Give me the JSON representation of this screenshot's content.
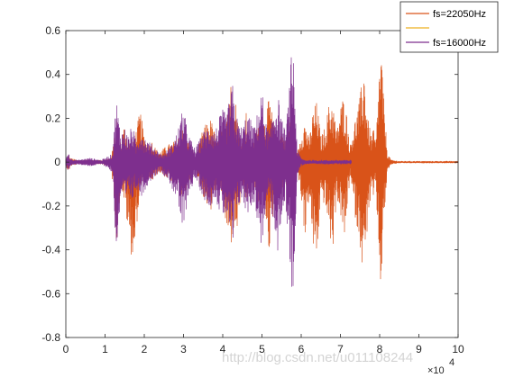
{
  "chart_data": {
    "type": "line",
    "title": "",
    "xlabel": "",
    "ylabel": "",
    "xlim": [
      0,
      100000
    ],
    "ylim": [
      -0.8,
      0.6
    ],
    "x_ticks": [
      0,
      10000,
      20000,
      30000,
      40000,
      50000,
      60000,
      70000,
      80000,
      90000,
      100000
    ],
    "x_tick_labels": [
      "0",
      "1",
      "2",
      "3",
      "4",
      "5",
      "6",
      "7",
      "8",
      "9",
      "10"
    ],
    "x_exponent_label": "×10",
    "x_exponent_power": "4",
    "y_ticks": [
      -0.8,
      -0.6,
      -0.4,
      -0.2,
      0,
      0.2,
      0.4,
      0.6
    ],
    "y_tick_labels": [
      "-0.8",
      "-0.6",
      "-0.4",
      "-0.2",
      "0",
      "0.2",
      "0.4",
      "0.6"
    ],
    "grid": false,
    "legend_position": "top-right",
    "legend": [
      "fs=22050Hz",
      "",
      "fs=16000Hz"
    ],
    "series": [
      {
        "name": "fs=22050Hz",
        "color": "#D95319",
        "x": [
          0,
          800,
          1000,
          3000,
          6000,
          9000,
          11500,
          12500,
          13000,
          13300,
          14000,
          15000,
          16500,
          17500,
          18000,
          19000,
          20000,
          21000,
          22000,
          23000,
          24000,
          26000,
          28000,
          30000,
          31000,
          32000,
          33000,
          34000,
          35000,
          37000,
          38500,
          40000,
          41000,
          42000,
          43000,
          43500,
          44000,
          45000,
          46000,
          47000,
          48000,
          49000,
          50000,
          51000,
          52000,
          53000,
          54000,
          55000,
          56000,
          57000,
          58000,
          58500,
          59000,
          60000,
          61000,
          62000,
          63000,
          64000,
          65000,
          66000,
          67000,
          68000,
          69000,
          70000,
          71000,
          72000,
          72500,
          73000,
          74000,
          75000,
          76000,
          77000,
          78000,
          78500,
          79000,
          80000,
          80500,
          81000,
          82000,
          83000,
          85000,
          90000,
          95000,
          100000
        ],
        "upper": [
          0.01,
          0.04,
          0.02,
          0.01,
          0.01,
          0.01,
          0.02,
          0.12,
          0.22,
          0.16,
          0.1,
          0.18,
          0.08,
          0.1,
          0.16,
          0.24,
          0.12,
          0.08,
          0.1,
          0.06,
          0.05,
          0.08,
          0.1,
          0.16,
          0.1,
          0.08,
          0.02,
          0.08,
          0.16,
          0.2,
          0.1,
          0.16,
          0.3,
          0.38,
          0.24,
          0.3,
          0.16,
          0.1,
          0.24,
          0.06,
          0.1,
          0.2,
          0.14,
          0.24,
          0.3,
          0.18,
          0.1,
          0.16,
          0.1,
          0.2,
          0.12,
          0.1,
          0.04,
          0.14,
          0.2,
          0.1,
          0.24,
          0.28,
          0.12,
          0.16,
          0.26,
          0.3,
          0.14,
          0.26,
          0.32,
          0.16,
          0.08,
          0.14,
          0.22,
          0.3,
          0.46,
          0.2,
          0.12,
          0.16,
          0.08,
          0.48,
          0.52,
          0.3,
          0.04,
          0.01,
          0.005,
          0.005,
          0.005,
          0.005
        ],
        "lower": [
          -0.01,
          -0.06,
          -0.02,
          -0.01,
          -0.01,
          -0.01,
          -0.02,
          -0.2,
          -0.4,
          -0.3,
          -0.1,
          -0.2,
          -0.42,
          -0.44,
          -0.3,
          -0.14,
          -0.08,
          -0.06,
          -0.1,
          -0.06,
          -0.05,
          -0.08,
          -0.1,
          -0.2,
          -0.1,
          -0.08,
          -0.02,
          -0.1,
          -0.16,
          -0.24,
          -0.1,
          -0.16,
          -0.34,
          -0.4,
          -0.3,
          -0.36,
          -0.26,
          -0.1,
          -0.2,
          -0.06,
          -0.1,
          -0.22,
          -0.14,
          -0.26,
          -0.44,
          -0.2,
          -0.1,
          -0.16,
          -0.1,
          -0.18,
          -0.12,
          -0.1,
          -0.04,
          -0.16,
          -0.36,
          -0.16,
          -0.4,
          -0.46,
          -0.16,
          -0.2,
          -0.3,
          -0.44,
          -0.16,
          -0.24,
          -0.38,
          -0.16,
          -0.06,
          -0.16,
          -0.28,
          -0.38,
          -0.56,
          -0.26,
          -0.14,
          -0.2,
          -0.1,
          -0.54,
          -0.6,
          -0.3,
          -0.04,
          -0.01,
          -0.005,
          -0.005,
          -0.005,
          -0.005
        ]
      },
      {
        "name": "",
        "color": "#EDB120",
        "x": [],
        "upper": [],
        "lower": []
      },
      {
        "name": "fs=16000Hz",
        "color": "#7E2F8E",
        "x": [
          0,
          800,
          1000,
          3000,
          6000,
          9000,
          10000,
          11000,
          12000,
          12500,
          13000,
          13200,
          13500,
          14000,
          15000,
          16000,
          17000,
          18000,
          19000,
          20000,
          21000,
          22000,
          23000,
          24000,
          25000,
          26000,
          27000,
          28000,
          29000,
          30000,
          31000,
          32000,
          33000,
          34000,
          35000,
          36000,
          37000,
          38000,
          39000,
          40000,
          41000,
          42000,
          42500,
          43000,
          44000,
          45000,
          46000,
          47000,
          48000,
          49000,
          50000,
          51000,
          52000,
          53000,
          54000,
          55000,
          56000,
          57000,
          57500,
          58000,
          58500,
          59000,
          60000,
          61000,
          62000,
          63000,
          64000,
          66000,
          68000,
          70000,
          72000,
          72800
        ],
        "upper": [
          0.02,
          0.05,
          0.02,
          0.01,
          0.02,
          0.01,
          0.02,
          0.03,
          0.04,
          0.22,
          0.28,
          0.26,
          0.2,
          0.14,
          0.16,
          0.12,
          0.18,
          0.08,
          0.16,
          0.12,
          0.1,
          0.08,
          0.06,
          0.04,
          0.04,
          0.06,
          0.08,
          0.12,
          0.18,
          0.26,
          0.14,
          0.1,
          0.06,
          0.1,
          0.14,
          0.16,
          0.18,
          0.14,
          0.2,
          0.24,
          0.22,
          0.32,
          0.36,
          0.26,
          0.18,
          0.16,
          0.22,
          0.2,
          0.16,
          0.24,
          0.34,
          0.18,
          0.14,
          0.26,
          0.32,
          0.2,
          0.14,
          0.34,
          0.5,
          0.52,
          0.3,
          0.06,
          0.02,
          0.01,
          0.01,
          0.01,
          0.01,
          0.01,
          0.01,
          0.01,
          0.01,
          0.01
        ],
        "lower": [
          -0.02,
          -0.05,
          -0.02,
          -0.01,
          -0.02,
          -0.01,
          -0.02,
          -0.03,
          -0.06,
          -0.3,
          -0.42,
          -0.44,
          -0.3,
          -0.16,
          -0.2,
          -0.16,
          -0.18,
          -0.12,
          -0.16,
          -0.14,
          -0.1,
          -0.08,
          -0.06,
          -0.04,
          -0.06,
          -0.08,
          -0.12,
          -0.16,
          -0.24,
          -0.36,
          -0.16,
          -0.12,
          -0.08,
          -0.12,
          -0.16,
          -0.2,
          -0.2,
          -0.16,
          -0.22,
          -0.26,
          -0.24,
          -0.36,
          -0.44,
          -0.3,
          -0.2,
          -0.18,
          -0.24,
          -0.22,
          -0.18,
          -0.3,
          -0.4,
          -0.2,
          -0.16,
          -0.32,
          -0.44,
          -0.24,
          -0.18,
          -0.44,
          -0.62,
          -0.56,
          -0.3,
          -0.06,
          -0.02,
          -0.01,
          -0.01,
          -0.01,
          -0.01,
          -0.01,
          -0.01,
          -0.01,
          -0.01,
          -0.01
        ]
      }
    ]
  },
  "watermark": "http://blog.csdn.net/u011108244"
}
